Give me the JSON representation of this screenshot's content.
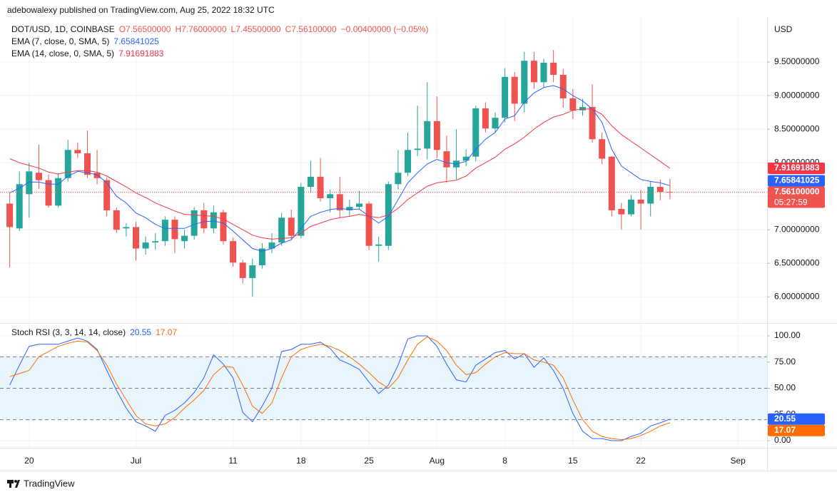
{
  "header": "adebowalexy published on TradingView.com, Aug 25, 2022 18:32 UTC",
  "footer": "TradingView",
  "chart_data": [
    {
      "type": "candlestick",
      "title": "DOT/USD, 1D, COINBASE",
      "info": [
        "O7.56500000",
        "H7.76000000",
        "L7.45500000",
        "C7.56100000",
        "−0.00400000 (−0.05%)"
      ],
      "currency": "USD",
      "close_label": "7.56100000",
      "countdown": "05:27:59",
      "up_color": "#26a69a",
      "down_color": "#ef5350",
      "x": [
        "2022-06-18",
        "2022-06-19",
        "2022-06-20",
        "2022-06-21",
        "2022-06-22",
        "2022-06-23",
        "2022-06-24",
        "2022-06-25",
        "2022-06-26",
        "2022-06-27",
        "2022-06-28",
        "2022-06-29",
        "2022-06-30",
        "2022-07-01",
        "2022-07-02",
        "2022-07-03",
        "2022-07-04",
        "2022-07-05",
        "2022-07-06",
        "2022-07-07",
        "2022-07-08",
        "2022-07-09",
        "2022-07-10",
        "2022-07-11",
        "2022-07-12",
        "2022-07-13",
        "2022-07-14",
        "2022-07-15",
        "2022-07-16",
        "2022-07-17",
        "2022-07-18",
        "2022-07-19",
        "2022-07-20",
        "2022-07-21",
        "2022-07-22",
        "2022-07-23",
        "2022-07-24",
        "2022-07-25",
        "2022-07-26",
        "2022-07-27",
        "2022-07-28",
        "2022-07-29",
        "2022-07-30",
        "2022-07-31",
        "2022-08-01",
        "2022-08-02",
        "2022-08-03",
        "2022-08-04",
        "2022-08-05",
        "2022-08-06",
        "2022-08-07",
        "2022-08-08",
        "2022-08-09",
        "2022-08-10",
        "2022-08-11",
        "2022-08-12",
        "2022-08-13",
        "2022-08-14",
        "2022-08-15",
        "2022-08-16",
        "2022-08-17",
        "2022-08-18",
        "2022-08-19",
        "2022-08-20",
        "2022-08-21",
        "2022-08-22",
        "2022-08-23",
        "2022-08-24",
        "2022-08-25"
      ],
      "open": [
        7.39,
        7.02,
        7.53,
        7.85,
        7.74,
        7.36,
        7.77,
        8.19,
        8.14,
        7.85,
        7.74,
        7.29,
        7.02,
        7.04,
        6.72,
        6.81,
        6.83,
        7.15,
        6.83,
        6.91,
        7.29,
        7.02,
        7.26,
        6.83,
        6.51,
        6.28,
        6.47,
        6.72,
        6.81,
        7.18,
        6.91,
        7.64,
        7.79,
        7.47,
        7.53,
        7.29,
        7.34,
        7.39,
        6.76,
        6.76,
        7.68,
        7.85,
        8.19,
        8.21,
        8.62,
        8.17,
        7.93,
        8.03,
        8.09,
        8.81,
        8.51,
        8.67,
        9.28,
        8.88,
        9.52,
        9.2,
        9.49,
        9.31,
        8.96,
        8.78,
        8.83,
        8.35,
        8.09,
        7.31,
        7.23,
        7.45,
        7.39,
        7.64,
        7.565
      ],
      "high": [
        7.55,
        7.87,
        8.0,
        8.27,
        7.82,
        7.85,
        8.34,
        8.3,
        8.48,
        8.19,
        7.78,
        7.33,
        7.1,
        7.12,
        6.9,
        6.95,
        7.2,
        7.2,
        7.0,
        7.34,
        7.4,
        7.36,
        7.3,
        6.88,
        6.55,
        6.57,
        6.8,
        6.95,
        7.25,
        7.3,
        7.7,
        8.03,
        8.07,
        7.6,
        7.79,
        7.45,
        7.58,
        7.42,
        6.9,
        7.72,
        8.19,
        8.45,
        8.85,
        9.2,
        8.99,
        8.4,
        8.5,
        8.2,
        8.85,
        8.9,
        8.75,
        9.41,
        9.35,
        9.65,
        9.65,
        9.55,
        9.68,
        9.4,
        9.1,
        8.95,
        9.17,
        8.45,
        8.1,
        7.4,
        7.52,
        7.6,
        7.72,
        7.75,
        7.76
      ],
      "low": [
        6.44,
        6.98,
        7.18,
        7.61,
        7.33,
        7.33,
        7.72,
        8.07,
        7.77,
        7.68,
        7.2,
        6.95,
        6.9,
        6.54,
        6.63,
        6.7,
        6.76,
        6.65,
        6.72,
        6.85,
        6.95,
        6.95,
        6.78,
        6.45,
        6.2,
        6.0,
        6.42,
        6.65,
        6.76,
        6.85,
        6.87,
        7.55,
        7.42,
        7.26,
        7.18,
        7.2,
        7.3,
        6.7,
        6.52,
        6.7,
        7.6,
        7.8,
        8.1,
        8.05,
        8.07,
        7.7,
        7.75,
        7.95,
        8.02,
        8.45,
        8.45,
        8.6,
        8.62,
        8.75,
        9.1,
        9.12,
        9.2,
        8.82,
        8.65,
        8.7,
        8.3,
        7.98,
        7.2,
        7.0,
        7.2,
        7.0,
        7.2,
        7.44,
        7.455
      ],
      "close": [
        7.04,
        7.68,
        7.87,
        7.74,
        7.36,
        7.77,
        8.19,
        8.14,
        7.82,
        7.77,
        7.29,
        7.0,
        7.04,
        6.72,
        6.81,
        6.83,
        7.15,
        6.86,
        6.91,
        7.29,
        7.02,
        7.26,
        6.83,
        6.51,
        6.28,
        6.47,
        6.72,
        6.81,
        7.18,
        6.91,
        7.64,
        7.79,
        7.47,
        7.53,
        7.29,
        7.34,
        7.39,
        6.76,
        6.78,
        7.68,
        7.85,
        8.19,
        8.21,
        8.62,
        8.19,
        7.93,
        8.03,
        8.09,
        8.81,
        8.51,
        8.67,
        9.28,
        8.88,
        9.52,
        9.2,
        9.49,
        9.31,
        8.96,
        8.78,
        8.83,
        8.35,
        8.06,
        7.29,
        7.23,
        7.45,
        7.39,
        7.64,
        7.565,
        7.561
      ],
      "series": [
        {
          "name": "EMA (7, close, 0, SMA, 5)",
          "color": "#2962ff",
          "values": [
            7.55,
            7.62,
            7.71,
            7.71,
            7.68,
            7.68,
            7.8,
            7.87,
            7.85,
            7.82,
            7.7,
            7.5,
            7.4,
            7.25,
            7.18,
            7.08,
            7.02,
            7.02,
            7.02,
            7.08,
            7.12,
            7.13,
            7.1,
            6.98,
            6.85,
            6.72,
            6.68,
            6.72,
            6.8,
            6.85,
            7.02,
            7.2,
            7.26,
            7.3,
            7.32,
            7.3,
            7.31,
            7.2,
            7.1,
            7.2,
            7.45,
            7.7,
            7.85,
            7.98,
            8.05,
            8.0,
            7.98,
            8.02,
            8.2,
            8.35,
            8.45,
            8.65,
            8.7,
            8.9,
            9.04,
            9.12,
            9.15,
            9.1,
            9.0,
            8.92,
            8.8,
            8.6,
            8.2,
            7.95,
            7.85,
            7.75,
            7.72,
            7.7,
            7.65841025
          ]
        },
        {
          "name": "EMA (14, close, 0, SMA, 5)",
          "color": "#f23645",
          "values": [
            8.06,
            8.0,
            7.96,
            7.92,
            7.86,
            7.83,
            7.86,
            7.88,
            7.88,
            7.86,
            7.8,
            7.72,
            7.64,
            7.55,
            7.48,
            7.4,
            7.34,
            7.28,
            7.23,
            7.22,
            7.21,
            7.2,
            7.16,
            7.08,
            7.0,
            6.92,
            6.88,
            6.86,
            6.87,
            6.88,
            6.95,
            7.05,
            7.1,
            7.15,
            7.18,
            7.2,
            7.23,
            7.2,
            7.18,
            7.22,
            7.32,
            7.45,
            7.55,
            7.65,
            7.7,
            7.72,
            7.74,
            7.8,
            7.92,
            8.0,
            8.08,
            8.2,
            8.28,
            8.38,
            8.5,
            8.6,
            8.68,
            8.72,
            8.78,
            8.8,
            8.8,
            8.72,
            8.55,
            8.42,
            8.32,
            8.22,
            8.12,
            8.02,
            7.91691883
          ]
        }
      ],
      "xlim": [
        "2022-06-17",
        "2022-09-04"
      ],
      "xticks": [
        {
          "value": "2022-06-20",
          "label": "20"
        },
        {
          "value": "2022-07-01",
          "label": "Jul"
        },
        {
          "value": "2022-07-11",
          "label": "11"
        },
        {
          "value": "2022-07-18",
          "label": "18"
        },
        {
          "value": "2022-07-25",
          "label": "25"
        },
        {
          "value": "2022-08-01",
          "label": "Aug"
        },
        {
          "value": "2022-08-08",
          "label": "8"
        },
        {
          "value": "2022-08-15",
          "label": "15"
        },
        {
          "value": "2022-08-22",
          "label": "22"
        },
        {
          "value": "2022-09-01",
          "label": "Sep"
        }
      ],
      "ylim": [
        5.62,
        10.16
      ],
      "yticks": [
        {
          "value": 6,
          "label": "6.00000000"
        },
        {
          "value": 6.5,
          "label": "6.50000000"
        },
        {
          "value": 7,
          "label": "7.00000000"
        },
        {
          "value": 7.5,
          "label": "7.50000000"
        },
        {
          "value": 8,
          "label": "8.00000000"
        },
        {
          "value": 8.5,
          "label": "8.50000000"
        },
        {
          "value": 9,
          "label": "9.00000000"
        },
        {
          "value": 9.5,
          "label": "9.50000000"
        }
      ],
      "grid": true
    },
    {
      "type": "line",
      "title": "Stoch RSI (3, 3, 14, 14, close)",
      "series": [
        {
          "color": "#2962ff",
          "values": [
            53,
            72,
            90,
            92,
            92,
            92,
            95,
            98,
            95,
            87,
            67,
            48,
            31,
            18,
            14,
            9,
            24,
            29,
            36,
            46,
            60,
            82,
            73,
            60,
            27,
            18,
            33,
            50,
            85,
            87,
            92,
            92,
            94,
            88,
            77,
            73,
            68,
            56,
            45,
            53,
            72,
            97,
            100,
            100,
            90,
            73,
            58,
            56,
            72,
            78,
            84,
            86,
            78,
            83,
            70,
            79,
            67,
            50,
            26,
            9,
            2,
            2,
            0,
            0,
            4,
            7,
            14,
            17,
            20.55
          ]
        },
        {
          "color": "#ff6d00",
          "values": [
            61,
            64,
            67,
            80,
            85,
            90,
            93,
            95,
            94,
            86,
            72,
            54,
            39,
            24,
            16,
            14,
            16,
            22,
            31,
            39,
            48,
            63,
            71,
            70,
            53,
            33,
            26,
            36,
            60,
            80,
            87,
            90,
            92,
            90,
            86,
            80,
            73,
            65,
            56,
            50,
            60,
            77,
            92,
            99,
            95,
            86,
            72,
            63,
            65,
            73,
            80,
            84,
            83,
            83,
            77,
            75,
            72,
            60,
            39,
            20,
            9,
            4,
            2,
            1,
            2,
            5,
            9,
            14,
            17.07
          ]
        }
      ],
      "ylim": [
        -6.8,
        110.9
      ],
      "yticks": [
        {
          "value": 0,
          "label": "0.00"
        },
        {
          "value": 25,
          "label": "25.00"
        },
        {
          "value": 50,
          "label": "50.00"
        },
        {
          "value": 75,
          "label": "75.00"
        },
        {
          "value": 100,
          "label": "100.00"
        }
      ],
      "upper_band": 80,
      "middle_band": 50,
      "lower_band": 20,
      "band_color": "#e3f2fd",
      "grid": true
    }
  ]
}
